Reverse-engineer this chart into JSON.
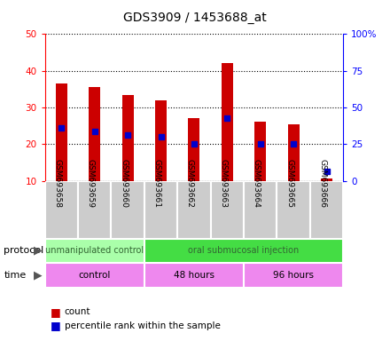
{
  "title": "GDS3909 / 1453688_at",
  "samples": [
    "GSM693658",
    "GSM693659",
    "GSM693660",
    "GSM693661",
    "GSM693662",
    "GSM693663",
    "GSM693664",
    "GSM693665",
    "GSM693666"
  ],
  "bar_tops": [
    36.5,
    35.5,
    33.5,
    32.0,
    27.0,
    42.0,
    26.0,
    25.5,
    10.5
  ],
  "bar_bottoms": [
    10,
    10,
    10,
    10,
    10,
    10,
    10,
    10,
    10
  ],
  "percentile_values": [
    24.5,
    23.5,
    22.5,
    22.0,
    20.0,
    27.0,
    20.0,
    20.0,
    12.5
  ],
  "left_ylim": [
    10,
    50
  ],
  "left_yticks": [
    10,
    20,
    30,
    40,
    50
  ],
  "right_ylim": [
    0,
    100
  ],
  "right_yticks": [
    0,
    25,
    50,
    75,
    100
  ],
  "right_yticklabels": [
    "0",
    "25",
    "50",
    "75",
    "100%"
  ],
  "bar_color": "#cc0000",
  "percentile_color": "#0000cc",
  "protocol_groups": [
    {
      "label": "unmanipulated control",
      "start": 0,
      "end": 3,
      "color": "#aaffaa"
    },
    {
      "label": "oral submucosal injection",
      "start": 3,
      "end": 9,
      "color": "#44dd44"
    }
  ],
  "time_groups": [
    {
      "label": "control",
      "start": 0,
      "end": 3,
      "color": "#ee88ee"
    },
    {
      "label": "48 hours",
      "start": 3,
      "end": 6,
      "color": "#ee88ee"
    },
    {
      "label": "96 hours",
      "start": 6,
      "end": 9,
      "color": "#ee88ee"
    }
  ],
  "protocol_label": "protocol",
  "time_label": "time",
  "legend_count_label": "count",
  "legend_percentile_label": "percentile rank within the sample",
  "bar_color_label": "#cc0000",
  "percentile_color_label": "#0000cc",
  "plot_bg_color": "#ffffff",
  "tick_area_bg": "#cccccc"
}
